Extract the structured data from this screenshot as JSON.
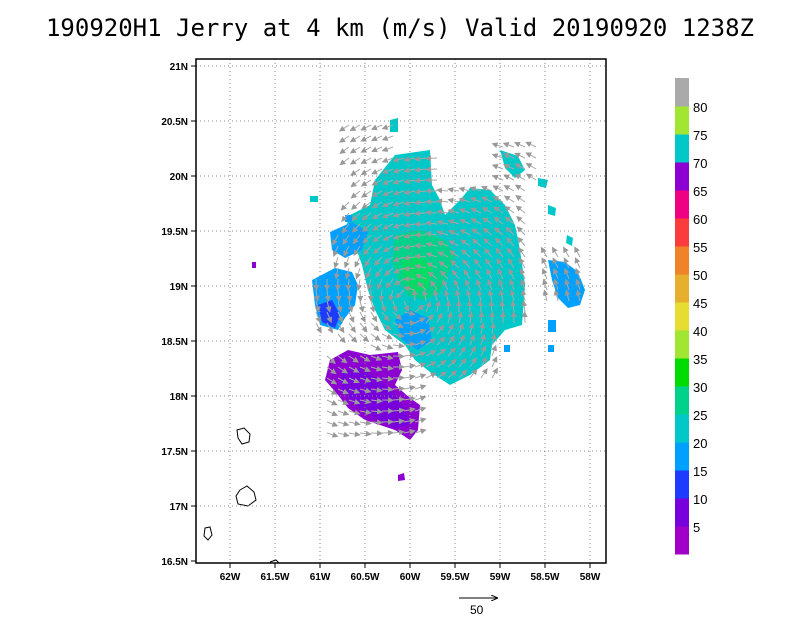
{
  "title": "190920H1 Jerry at 4 km (m/s) Valid 20190920 1238Z",
  "map": {
    "lon_range": [
      -62.4,
      -57.9
    ],
    "lat_range": [
      16.48,
      21.05
    ],
    "x_ticks": [
      "62W",
      "61.5W",
      "61W",
      "60.5W",
      "60W",
      "59.5W",
      "59W",
      "58.5W",
      "58W"
    ],
    "y_ticks": [
      "16.5N",
      "17N",
      "17.5N",
      "18N",
      "18.5N",
      "19N",
      "19.5N",
      "20N",
      "20.5N",
      "21N"
    ],
    "grid": "dotted"
  },
  "colorbar": {
    "labels": [
      "5",
      "10",
      "15",
      "20",
      "25",
      "30",
      "35",
      "40",
      "45",
      "50",
      "55",
      "60",
      "65",
      "70",
      "75",
      "80"
    ],
    "colors": [
      "#a000c8",
      "#7800dc",
      "#1e3cff",
      "#00a0ff",
      "#00c8c8",
      "#00d28c",
      "#00dc00",
      "#a0e632",
      "#e6dc32",
      "#e6af2d",
      "#f08228",
      "#fa3c3c",
      "#f00082",
      "#8c00d2",
      "#00c8c8",
      "#a0e632",
      "#aaaaaa"
    ]
  },
  "vector_scale": {
    "label": "50"
  }
}
